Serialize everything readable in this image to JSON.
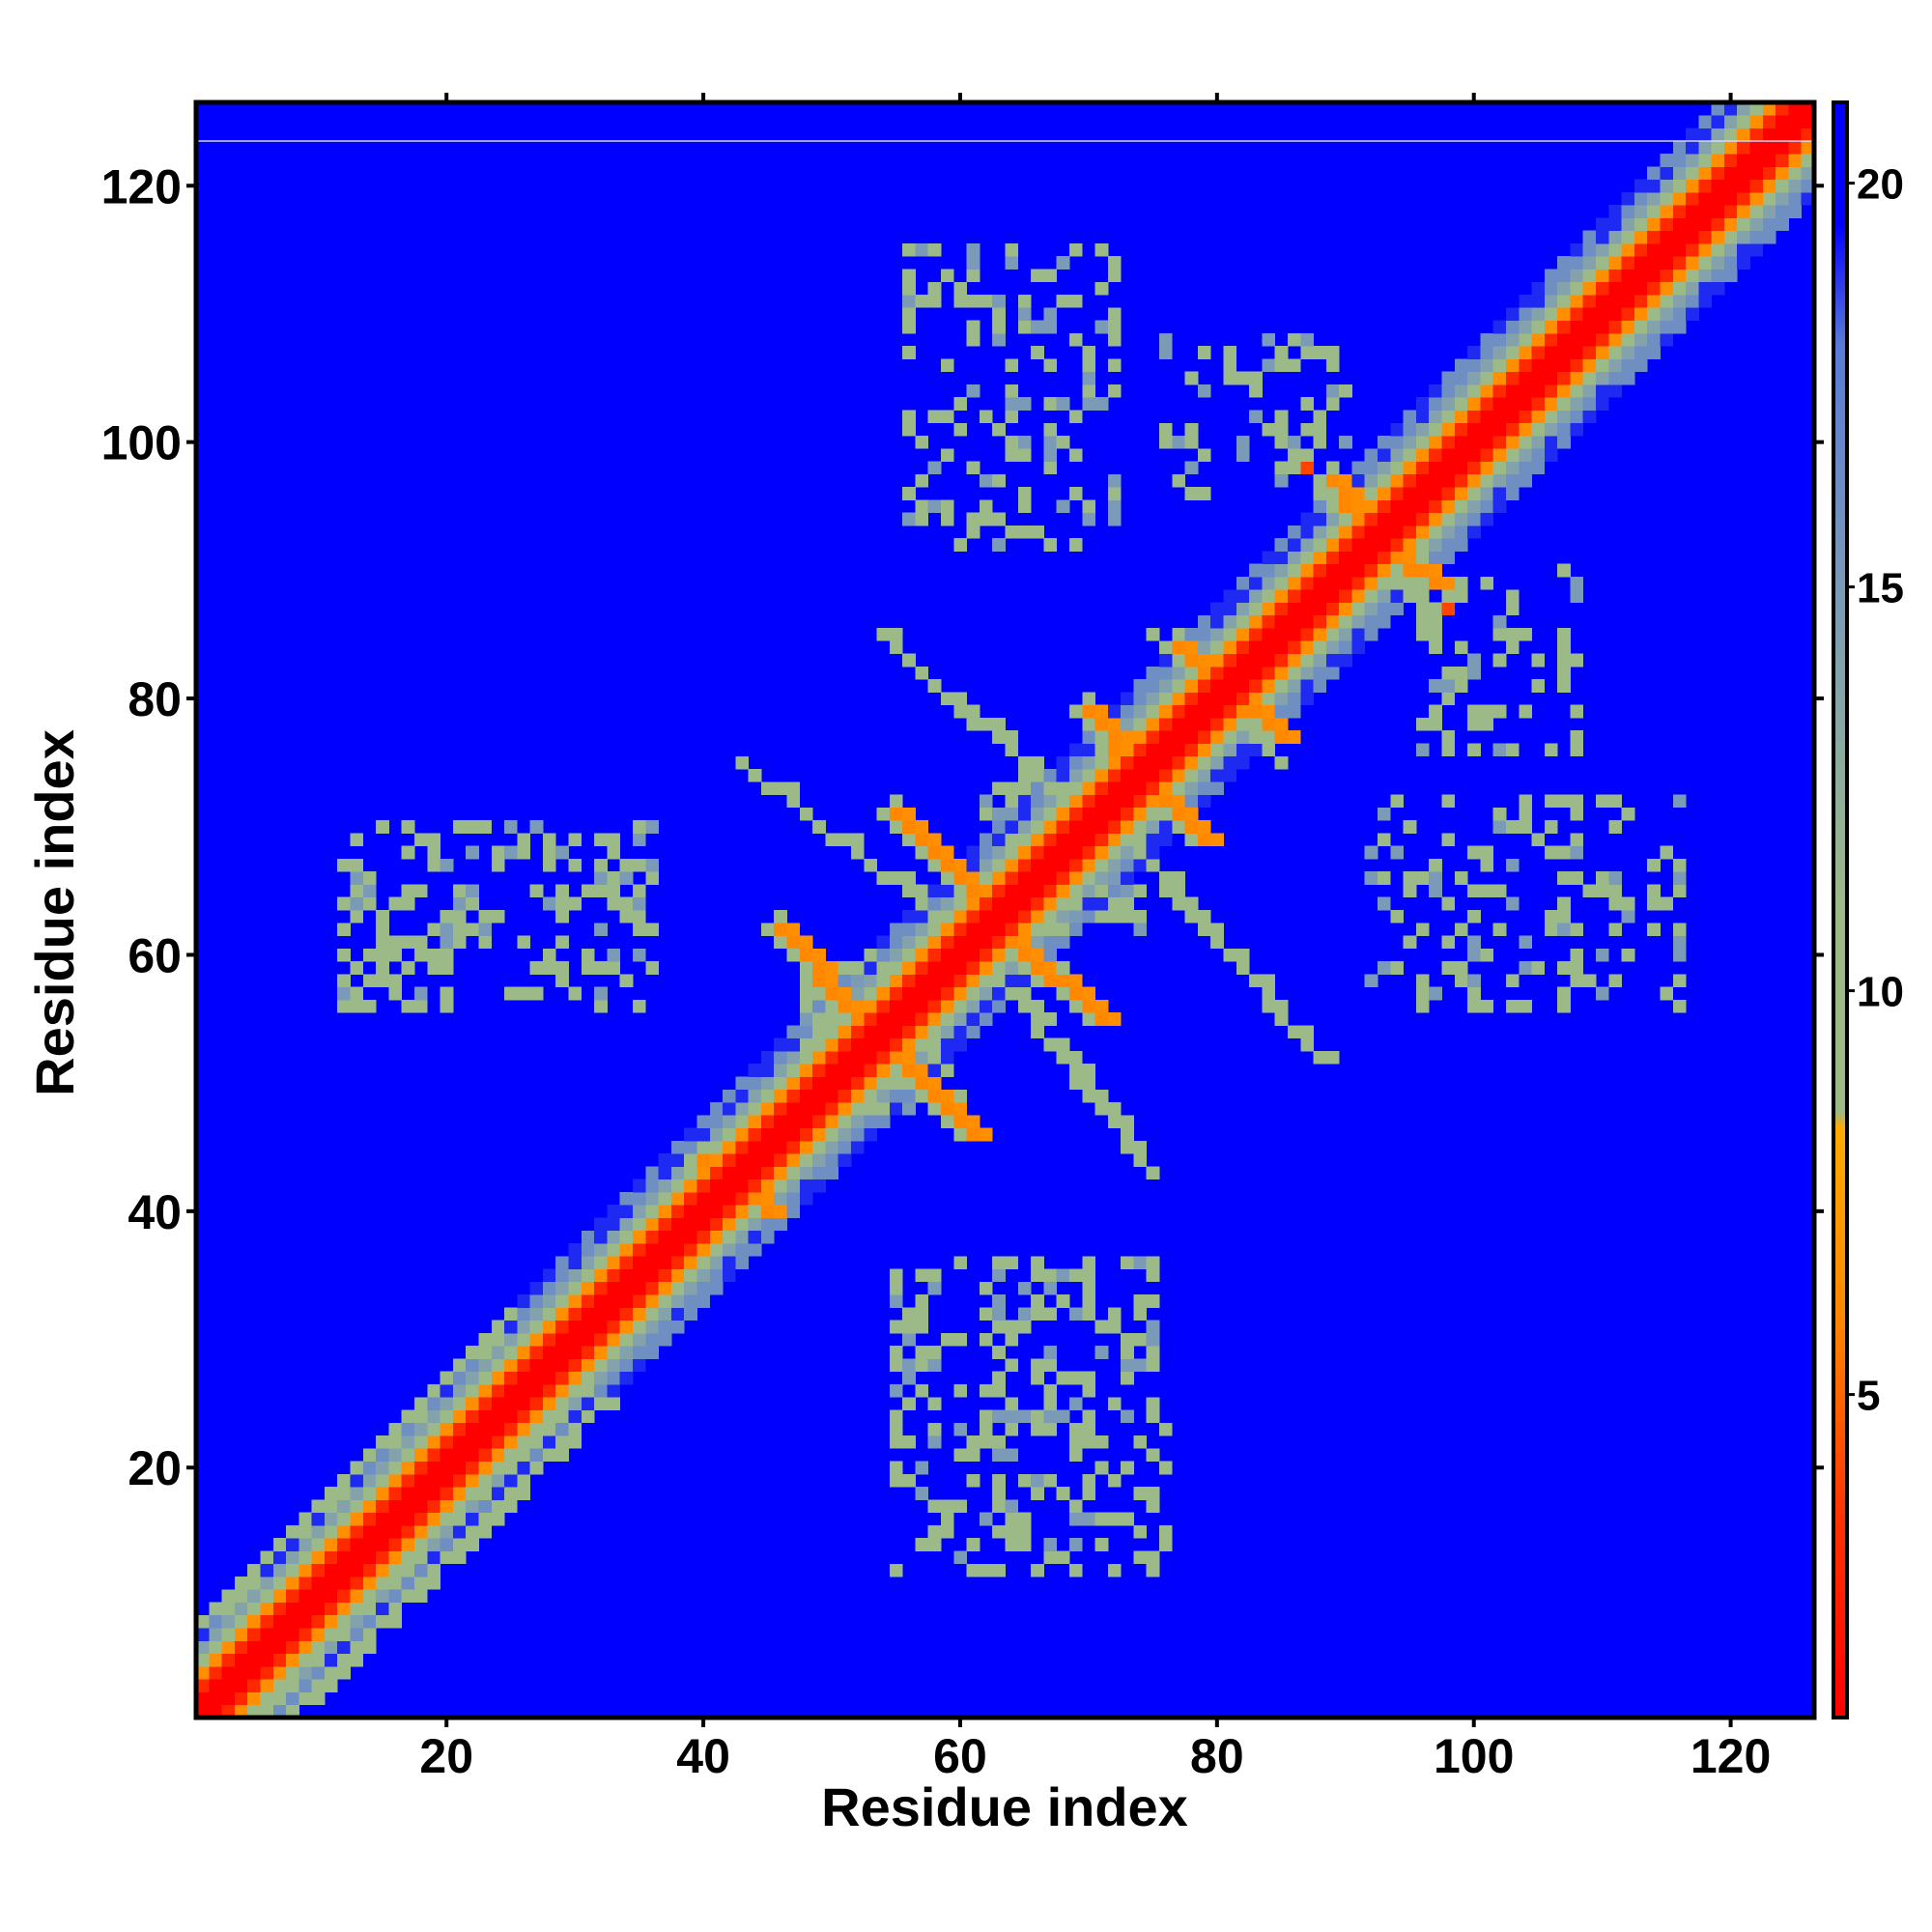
{
  "chart_data": {
    "type": "heatmap",
    "title": "",
    "xlabel": "Residue index",
    "ylabel": "Residue index",
    "xlim": [
      0.5,
      126.5
    ],
    "ylim": [
      0.5,
      126.5
    ],
    "n_residues": 126,
    "x_ticks": [
      20,
      40,
      60,
      80,
      100,
      120
    ],
    "y_ticks": [
      20,
      40,
      60,
      80,
      100,
      120
    ],
    "colorbar": {
      "range": [
        1,
        21
      ],
      "ticks": [
        5,
        10,
        15,
        20
      ],
      "stops": [
        {
          "value": 1,
          "color": "#ff0000"
        },
        {
          "value": 3.5,
          "color": "#ff3300"
        },
        {
          "value": 6,
          "color": "#ff8800"
        },
        {
          "value": 8.3,
          "color": "#ffaa00"
        },
        {
          "value": 8.5,
          "color": "#9cb986"
        },
        {
          "value": 11,
          "color": "#9cba88"
        },
        {
          "value": 15,
          "color": "#7a9ab8"
        },
        {
          "value": 18,
          "color": "#5a7ad8"
        },
        {
          "value": 19.5,
          "color": "#0000ff"
        },
        {
          "value": 21,
          "color": "#0000ff"
        }
      ]
    },
    "background_value": 21,
    "diagonal_value": 1,
    "contact_segments": [
      {
        "start": [
          3,
          1
        ],
        "end": [
          25,
          23
        ],
        "value": 6
      },
      {
        "start": [
          1,
          3
        ],
        "end": [
          23,
          25
        ],
        "value": 6
      },
      {
        "start": [
          5,
          1
        ],
        "end": [
          30,
          26
        ],
        "value": 10
      },
      {
        "start": [
          1,
          5
        ],
        "end": [
          26,
          30
        ],
        "value": 10
      },
      {
        "start": [
          8,
          1
        ],
        "end": [
          32,
          25
        ],
        "value": 11
      },
      {
        "start": [
          1,
          8
        ],
        "end": [
          25,
          32
        ],
        "value": 11
      },
      {
        "start": [
          40,
          44
        ],
        "end": [
          45,
          40
        ],
        "value": 6
      },
      {
        "start": [
          46,
          62
        ],
        "end": [
          52,
          55
        ],
        "value": 6
      },
      {
        "start": [
          55,
          71
        ],
        "end": [
          62,
          64
        ],
        "value": 6
      },
      {
        "start": [
          55,
          52
        ],
        "end": [
          61,
          46
        ],
        "value": 6
      },
      {
        "start": [
          64,
          61
        ],
        "end": [
          71,
          55
        ],
        "value": 6
      },
      {
        "start": [
          70,
          79
        ],
        "end": [
          73,
          75
        ],
        "value": 6
      },
      {
        "start": [
          75,
          73
        ],
        "end": [
          79,
          69
        ],
        "value": 6
      },
      {
        "start": [
          77,
          84
        ],
        "end": [
          80,
          81
        ],
        "value": 6
      },
      {
        "start": [
          81,
          80
        ],
        "end": [
          85,
          77
        ],
        "value": 6
      },
      {
        "start": [
          89,
          97
        ],
        "end": [
          91,
          93
        ],
        "value": 6
      },
      {
        "start": [
          93,
          91
        ],
        "end": [
          97,
          89
        ],
        "value": 6
      },
      {
        "start": [
          43,
          75
        ],
        "end": [
          62,
          60
        ],
        "value": 11
      },
      {
        "start": [
          60,
          62
        ],
        "end": [
          75,
          43
        ],
        "value": 11
      },
      {
        "start": [
          54,
          85
        ],
        "end": [
          70,
          70
        ],
        "value": 11
      },
      {
        "start": [
          72,
          70
        ],
        "end": [
          88,
          52
        ],
        "value": 11
      },
      {
        "start": [
          75,
          85
        ],
        "end": [
          85,
          75
        ],
        "value": 11
      },
      {
        "start": [
          85,
          100
        ],
        "end": [
          95,
          88
        ],
        "value": 11
      }
    ],
    "contact_blobs": [
      {
        "x": [
          12,
          36
        ],
        "y": [
          56,
          70
        ],
        "value": 11,
        "density": 0.35
      },
      {
        "x": [
          55,
          76
        ],
        "y": [
          12,
          36
        ],
        "value": 11,
        "density": 0.35
      },
      {
        "x": [
          56,
          72
        ],
        "y": [
          92,
          115
        ],
        "value": 11,
        "density": 0.3
      },
      {
        "x": [
          92,
          116
        ],
        "y": [
          56,
          72
        ],
        "value": 11,
        "density": 0.3
      },
      {
        "x": [
          48,
          60
        ],
        "y": [
          48,
          60
        ],
        "value": 11,
        "density": 0.45
      },
      {
        "x": [
          62,
          74
        ],
        "y": [
          62,
          74
        ],
        "value": 11,
        "density": 0.45
      },
      {
        "x": [
          76,
          90
        ],
        "y": [
          96,
          108
        ],
        "value": 11,
        "density": 0.25
      },
      {
        "x": [
          96,
          108
        ],
        "y": [
          76,
          90
        ],
        "value": 11,
        "density": 0.25
      }
    ],
    "isolated_points": [
      {
        "x": 87,
        "y": 98,
        "value": 4
      },
      {
        "x": 98,
        "y": 87,
        "value": 4
      }
    ]
  }
}
